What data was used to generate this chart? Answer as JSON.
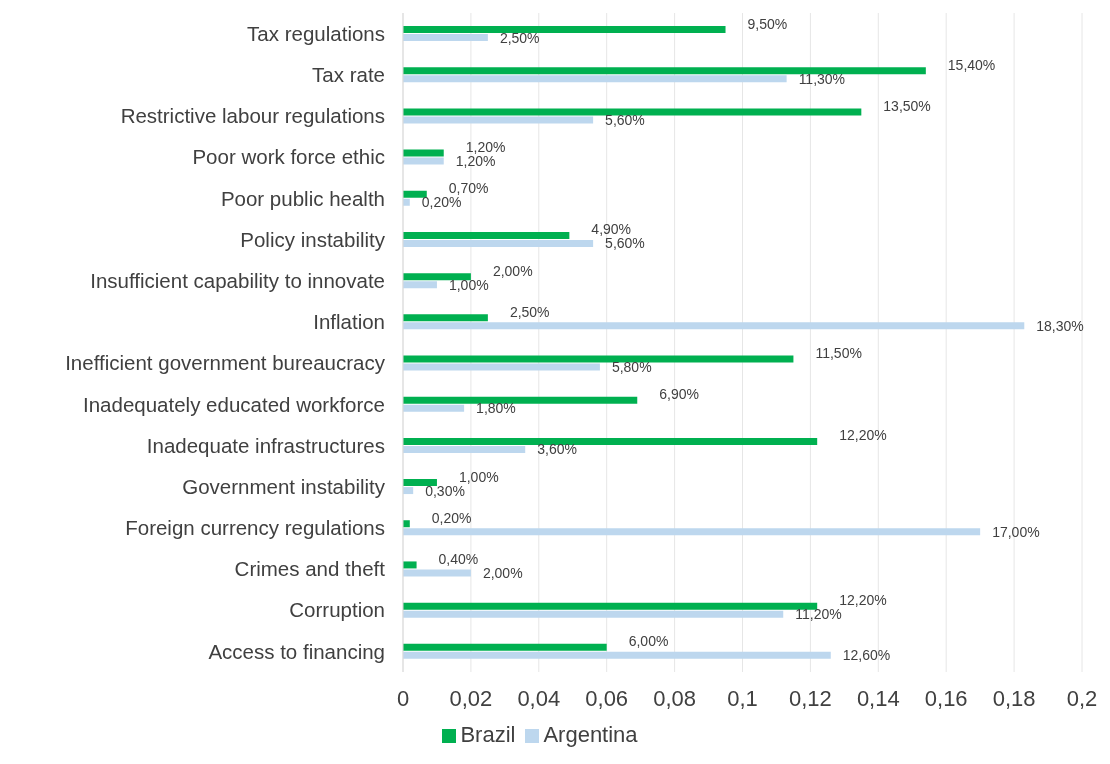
{
  "chart_data": {
    "type": "bar",
    "orientation": "horizontal",
    "categories": [
      "Tax regulations",
      "Tax rate",
      "Restrictive labour regulations",
      "Poor work force ethic",
      "Poor public health",
      "Policy instability",
      "Insufficient capability to innovate",
      "Inflation",
      "Inefficient government bureaucracy",
      "Inadequately educated workforce",
      "Inadequate infrastructures",
      "Government instability",
      "Foreign currency regulations",
      "Crimes and theft",
      "Corruption",
      "Access to financing"
    ],
    "series": [
      {
        "name": "Brazil",
        "color": "#00b050",
        "values": [
          0.095,
          0.154,
          0.135,
          0.012,
          0.007,
          0.049,
          0.02,
          0.025,
          0.115,
          0.069,
          0.122,
          0.01,
          0.002,
          0.004,
          0.122,
          0.06
        ],
        "value_labels": [
          "9,50%",
          "15,40%",
          "13,50%",
          "1,20%",
          "0,70%",
          "4,90%",
          "2,00%",
          "2,50%",
          "11,50%",
          "6,90%",
          "12,20%",
          "1,00%",
          "0,20%",
          "0,40%",
          "12,20%",
          "6,00%"
        ]
      },
      {
        "name": "Argentina",
        "color": "#bdd7ee",
        "values": [
          0.025,
          0.113,
          0.056,
          0.012,
          0.002,
          0.056,
          0.01,
          0.183,
          0.058,
          0.018,
          0.036,
          0.003,
          0.17,
          0.02,
          0.112,
          0.126
        ],
        "value_labels": [
          "2,50%",
          "11,30%",
          "5,60%",
          "1,20%",
          "0,20%",
          "5,60%",
          "1,00%",
          "18,30%",
          "5,80%",
          "1,80%",
          "3,60%",
          "0,30%",
          "17,00%",
          "2,00%",
          "11,20%",
          "12,60%"
        ]
      }
    ],
    "xlim": [
      0,
      0.2
    ],
    "xticks": [
      0,
      {
        "value": 0.02,
        "label": "0,02"
      },
      {
        "value": 0.04,
        "label": "0,04"
      },
      {
        "value": 0.06,
        "label": "0,06"
      },
      {
        "value": 0.08,
        "label": "0,08"
      },
      {
        "value": 0.1,
        "label": "0,1"
      },
      {
        "value": 0.12,
        "label": "0,12"
      },
      {
        "value": 0.14,
        "label": "0,14"
      },
      {
        "value": 0.16,
        "label": "0,16"
      },
      {
        "value": 0.18,
        "label": "0,18"
      },
      {
        "value": 0.2,
        "label": "0,2"
      }
    ],
    "grid": "x",
    "legend": "bottom"
  }
}
